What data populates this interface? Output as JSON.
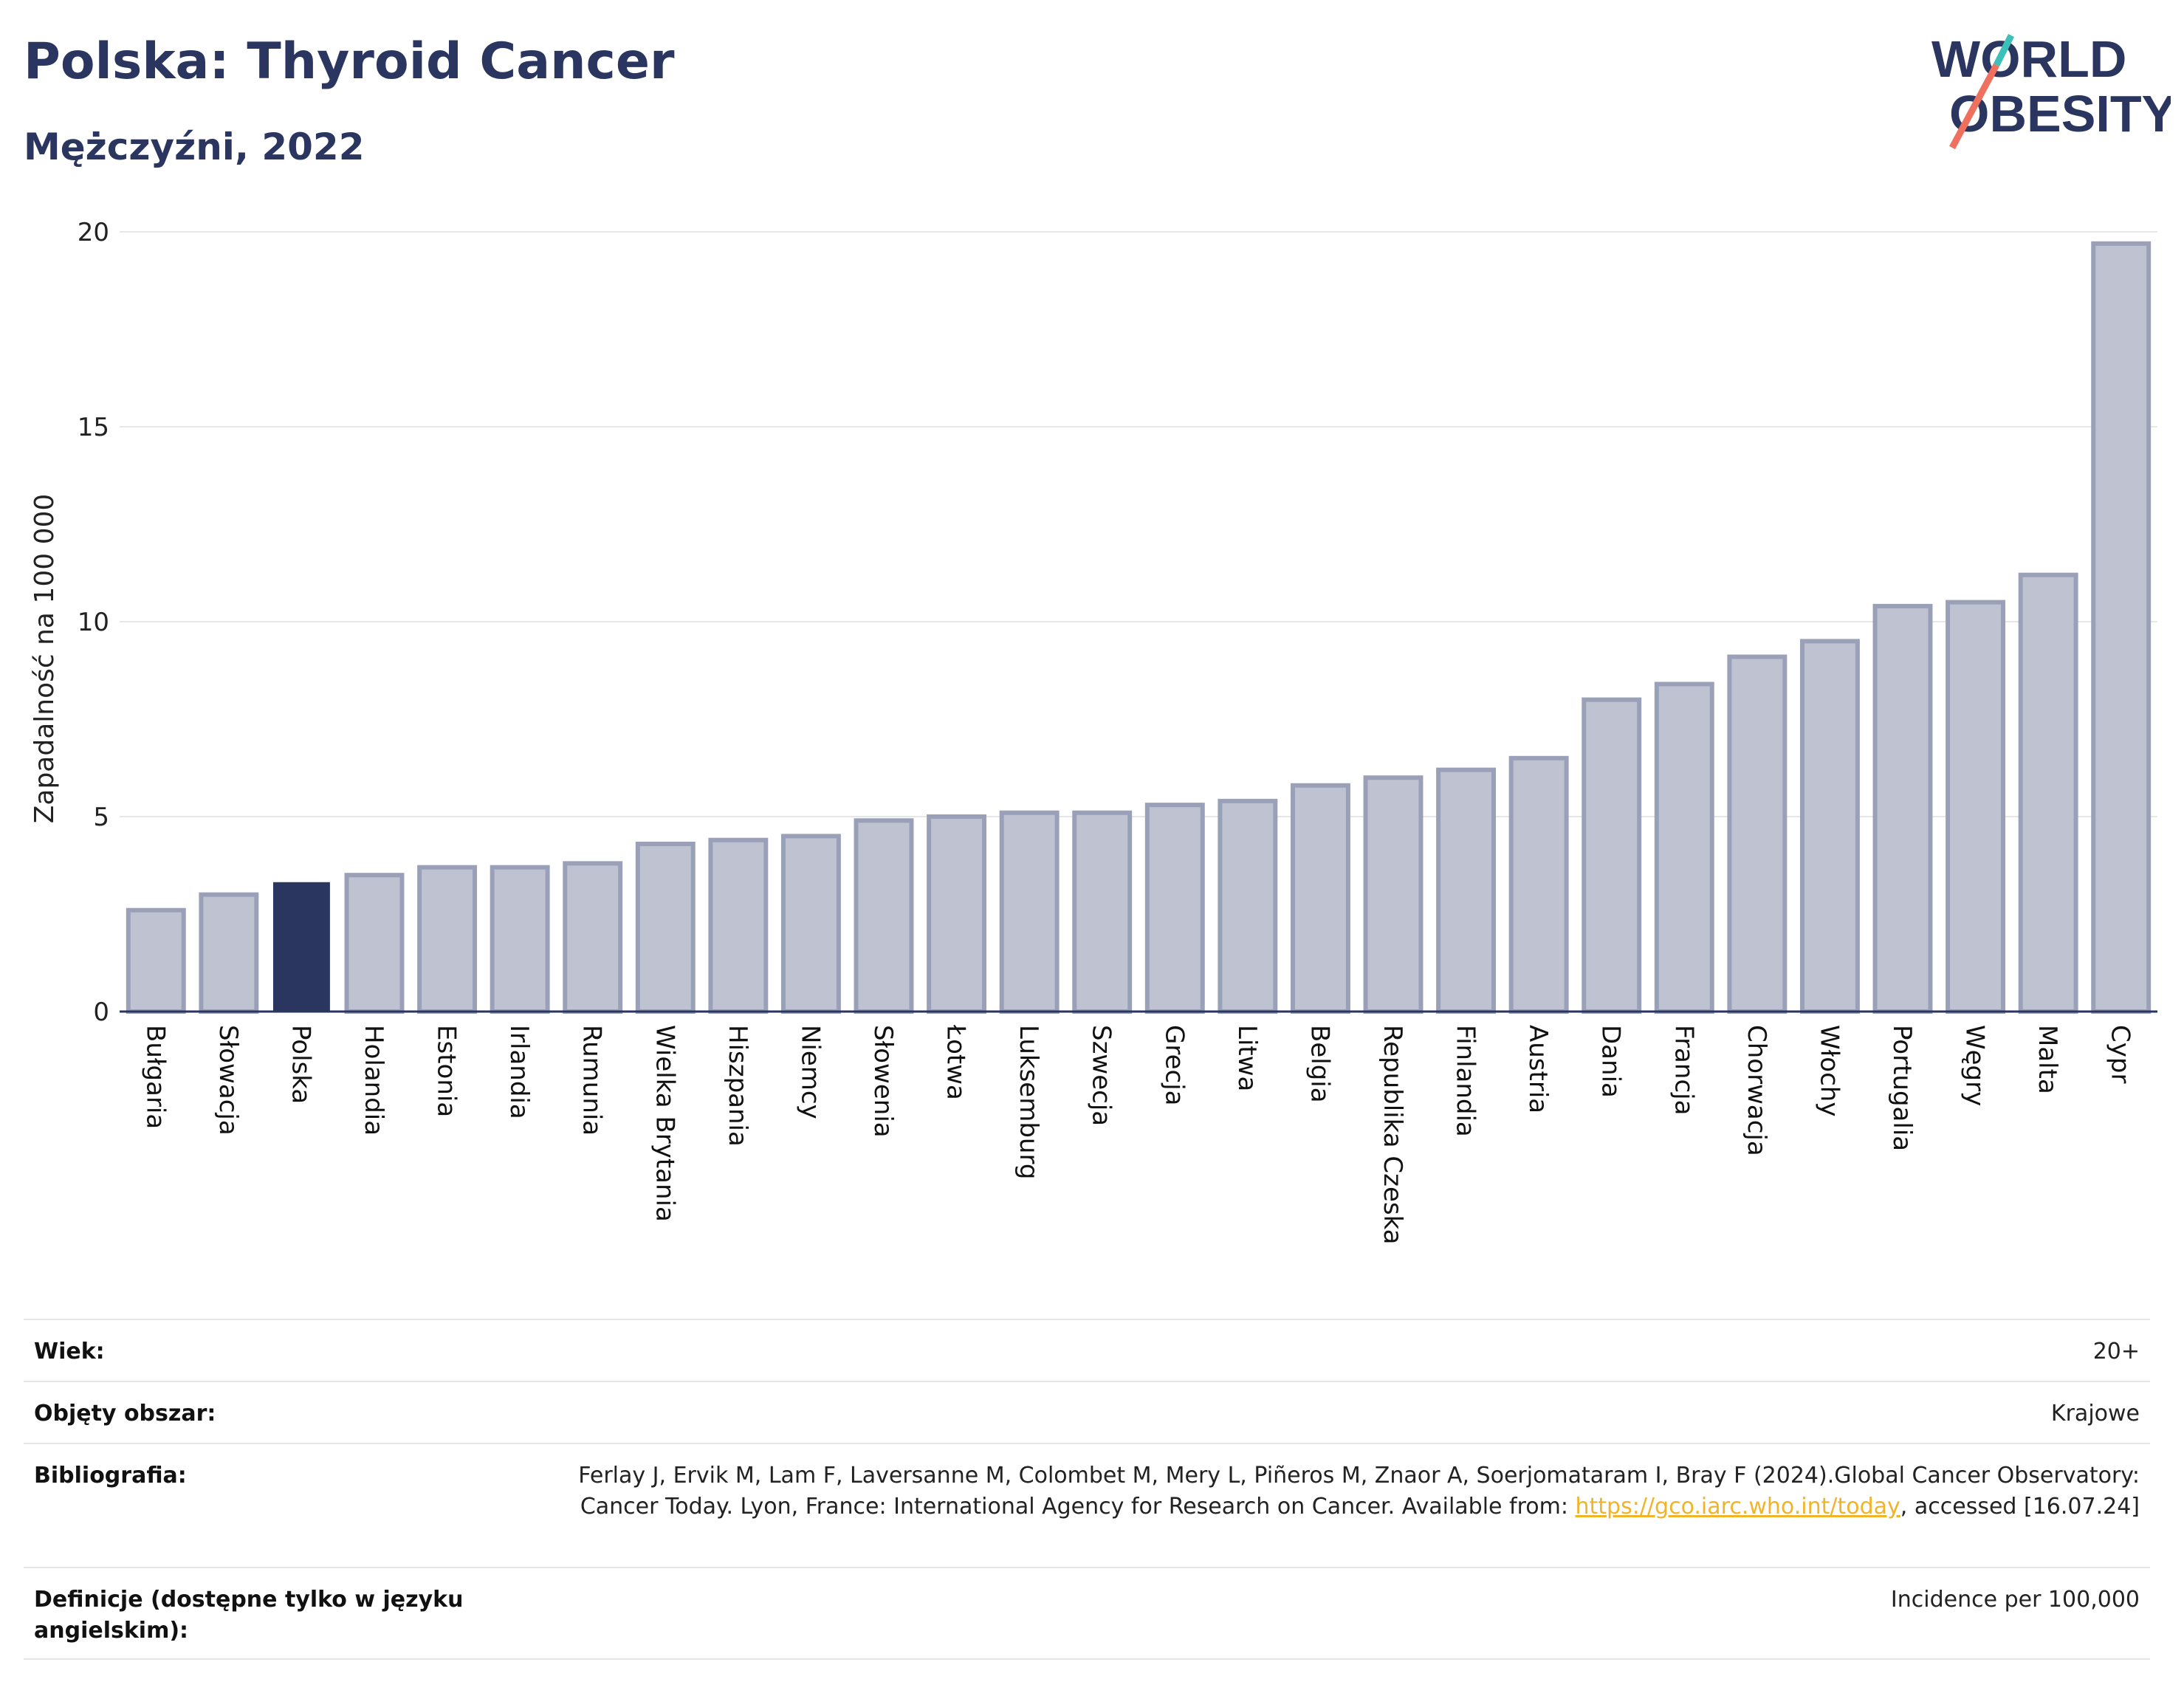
{
  "header": {
    "title": "Polska: Thyroid Cancer",
    "subtitle": "Mężczyźni, 2022"
  },
  "logo": {
    "line1": "WORLD",
    "line2": "OBESITY",
    "accent": "#f07060",
    "accent2": "#3cc0b8",
    "text_color": "#2b3660"
  },
  "colors": {
    "bar": "#bfc2d0",
    "bar_border": "#9aa0b8",
    "highlight": "#2b3660",
    "grid": "#e6e6e6",
    "axis": "#2b3660"
  },
  "chart_data": {
    "type": "bar",
    "title": "Polska: Thyroid Cancer",
    "subtitle": "Mężczyźni, 2022",
    "ylabel": "Zapadalność na 100 000",
    "xlabel": "",
    "ylim": [
      0,
      20
    ],
    "yticks": [
      0,
      5,
      10,
      15,
      20
    ],
    "grid": true,
    "highlight": "Polska",
    "categories": [
      "Bułgaria",
      "Słowacja",
      "Polska",
      "Holandia",
      "Estonia",
      "Irlandia",
      "Rumunia",
      "Wielka Brytania",
      "Hiszpania",
      "Niemcy",
      "Słowenia",
      "Łotwa",
      "Luksemburg",
      "Szwecja",
      "Grecja",
      "Litwa",
      "Belgia",
      "Republika Czeska",
      "Finlandia",
      "Austria",
      "Dania",
      "Francja",
      "Chorwacja",
      "Włochy",
      "Portugalia",
      "Węgry",
      "Malta",
      "Cypr"
    ],
    "values": [
      2.6,
      3.0,
      3.3,
      3.5,
      3.7,
      3.7,
      3.8,
      4.3,
      4.4,
      4.5,
      4.9,
      5.0,
      5.1,
      5.1,
      5.3,
      5.4,
      5.8,
      6.0,
      6.2,
      6.5,
      8.0,
      8.4,
      9.1,
      9.5,
      10.4,
      10.5,
      11.2,
      19.7
    ]
  },
  "meta": {
    "rows": [
      {
        "label": "Wiek:",
        "value": "20+"
      },
      {
        "label": "Objęty obszar:",
        "value": "Krajowe"
      },
      {
        "label": "Bibliografia:",
        "value_before": "Ferlay J, Ervik M, Lam F, Laversanne M, Colombet M, Mery L, Piñeros M, Znaor A, Soerjomataram I, Bray F (2024).Global Cancer Observatory: Cancer Today. Lyon, France: International Agency for Research on Cancer. Available from: ",
        "link": "https://gco.iarc.who.int/today",
        "value_after": ", accessed [16.07.24]"
      },
      {
        "label": "Definicje (dostępne tylko w języku angielskim):",
        "value": "Incidence per 100,000"
      }
    ]
  }
}
